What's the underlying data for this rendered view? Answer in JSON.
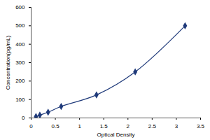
{
  "chart_data": {
    "type": "line",
    "x_label": "Optical Density",
    "y_label": "Concentration(pg/mL)",
    "x": [
      0.1,
      0.18,
      0.35,
      0.62,
      1.35,
      2.15,
      3.18
    ],
    "values": [
      7.8,
      15.6,
      31.2,
      62.5,
      125,
      250,
      500
    ],
    "color": "#1f3a7a",
    "marker": "diamond",
    "line_style": "solid",
    "xlim": [
      0,
      3.5
    ],
    "xticks": [
      0,
      0.5,
      1,
      1.5,
      2,
      2.5,
      3,
      3.5
    ],
    "ylim": [
      0,
      600
    ],
    "yticks": [
      0,
      100,
      200,
      300,
      400,
      500,
      600
    ],
    "grid": false
  }
}
